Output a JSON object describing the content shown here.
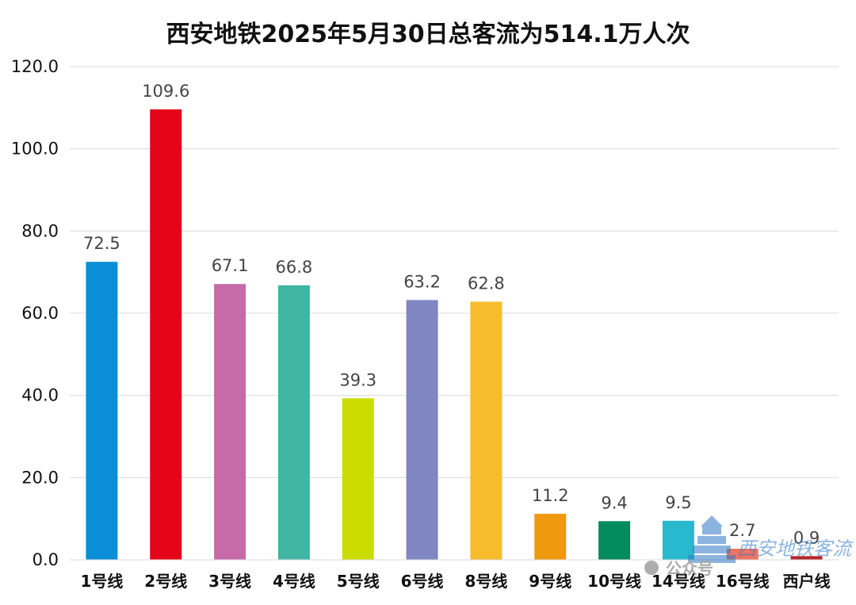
{
  "chart_data": {
    "type": "bar",
    "title": "西安地铁2025年5月30日总客流为514.1万人次",
    "xlabel": "",
    "ylabel": "",
    "ylim": [
      0,
      120
    ],
    "yticks": [
      "0.0",
      "20.0",
      "40.0",
      "60.0",
      "80.0",
      "100.0",
      "120.0"
    ],
    "grid": true,
    "categories": [
      "1号线",
      "2号线",
      "3号线",
      "4号线",
      "5号线",
      "6号线",
      "8号线",
      "9号线",
      "10号线",
      "14号线",
      "16号线",
      "西户线"
    ],
    "values": [
      72.5,
      109.6,
      67.1,
      66.8,
      39.3,
      63.2,
      62.8,
      11.2,
      9.4,
      9.5,
      2.7,
      0.9
    ],
    "value_labels": [
      "72.5",
      "109.6",
      "67.1",
      "66.8",
      "39.3",
      "63.2",
      "62.8",
      "11.2",
      "9.4",
      "9.5",
      "2.7",
      "0.9"
    ],
    "colors": [
      "#0a8fd6",
      "#e4051a",
      "#c66aa8",
      "#40b5a2",
      "#cbdc00",
      "#7f86c1",
      "#f6bc2b",
      "#ef9a0e",
      "#028b5c",
      "#29b9cf",
      "#ee7464",
      "#b6272a"
    ]
  },
  "watermark": {
    "text": "西安地铁客流",
    "source": "公众号"
  }
}
